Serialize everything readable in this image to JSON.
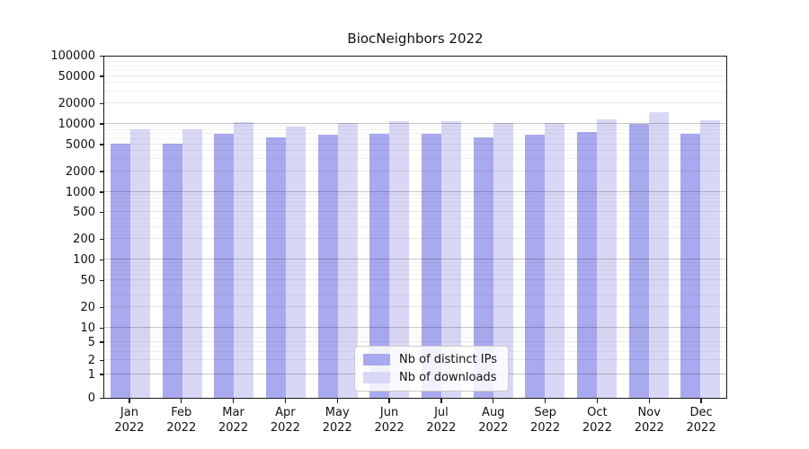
{
  "title": "BiocNeighbors 2022",
  "chart_data": {
    "type": "bar",
    "title": "BiocNeighbors 2022",
    "categories": [
      "Jan 2022",
      "Feb 2022",
      "Mar 2022",
      "Apr 2022",
      "May 2022",
      "Jun 2022",
      "Jul 2022",
      "Aug 2022",
      "Sep 2022",
      "Oct 2022",
      "Nov 2022",
      "Dec 2022"
    ],
    "series": [
      {
        "name": "Nb of distinct IPs",
        "color": "#a9a9ef",
        "values": [
          5100,
          5100,
          7100,
          6200,
          6900,
          7100,
          7200,
          6300,
          6800,
          7600,
          9800,
          7000
        ]
      },
      {
        "name": "Nb of downloads",
        "color": "#d8d8f6",
        "values": [
          8200,
          8300,
          10700,
          9200,
          10300,
          10800,
          10900,
          10100,
          10300,
          11600,
          14900,
          11200
        ]
      }
    ],
    "xlabel": "",
    "ylabel": "",
    "y_ticks": [
      0,
      1,
      2,
      5,
      10,
      20,
      50,
      100,
      200,
      500,
      1000,
      2000,
      5000,
      10000,
      20000,
      50000,
      100000
    ],
    "ylim": [
      0,
      100000
    ],
    "y_scale": "log-with-zero",
    "grid": true,
    "legend_position": "lower center"
  },
  "colors": {
    "bar_ips": "#a9a9ef",
    "bar_downloads": "#d8d8f6",
    "grid_major": "rgba(0,0,0,0.22)",
    "grid_labeled": "rgba(0,0,0,0.09)",
    "grid_minor": "rgba(0,0,0,0.05)",
    "spine": "#1a1a1a",
    "background": "#ffffff"
  }
}
